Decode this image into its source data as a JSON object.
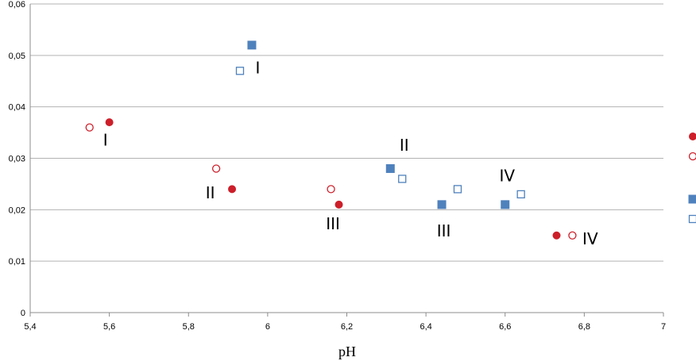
{
  "chart_data": {
    "type": "scatter",
    "title": "",
    "xlabel": "pH",
    "ylabel": "",
    "xlim": [
      5.4,
      7
    ],
    "ylim": [
      0,
      0.06
    ],
    "x_ticks": [
      "5,4",
      "5,6",
      "5,8",
      "6",
      "6,2",
      "6,4",
      "6,6",
      "6,8",
      "7"
    ],
    "y_ticks": [
      "0",
      "0,01",
      "0,02",
      "0,03",
      "0,04",
      "0,05",
      "0,06"
    ],
    "grid": "horizontal",
    "legend": "right (cropped, markers only)",
    "series": [
      {
        "marker": "circle-filled",
        "color": "#cc1f2a",
        "points": [
          {
            "x": 5.6,
            "y": 0.037
          },
          {
            "x": 5.91,
            "y": 0.024
          },
          {
            "x": 6.18,
            "y": 0.021
          },
          {
            "x": 6.73,
            "y": 0.015
          }
        ]
      },
      {
        "marker": "circle-open",
        "color": "#cc1f2a",
        "points": [
          {
            "x": 5.55,
            "y": 0.036
          },
          {
            "x": 5.87,
            "y": 0.028
          },
          {
            "x": 6.16,
            "y": 0.024
          },
          {
            "x": 6.77,
            "y": 0.015
          }
        ]
      },
      {
        "marker": "square-filled",
        "color": "#4f81bd",
        "points": [
          {
            "x": 5.96,
            "y": 0.052
          },
          {
            "x": 6.31,
            "y": 0.028
          },
          {
            "x": 6.44,
            "y": 0.021
          },
          {
            "x": 6.6,
            "y": 0.021
          }
        ]
      },
      {
        "marker": "square-open",
        "color": "#4f81bd",
        "points": [
          {
            "x": 5.93,
            "y": 0.047
          },
          {
            "x": 6.34,
            "y": 0.026
          },
          {
            "x": 6.48,
            "y": 0.024
          },
          {
            "x": 6.64,
            "y": 0.023
          }
        ]
      }
    ],
    "annotations": [
      {
        "text": "I",
        "x": 5.59,
        "y": 0.0325
      },
      {
        "text": "II",
        "x": 5.855,
        "y": 0.0222
      },
      {
        "text": "III",
        "x": 6.165,
        "y": 0.0162
      },
      {
        "text": "IV",
        "x": 6.815,
        "y": 0.0133
      },
      {
        "text": "I",
        "x": 5.975,
        "y": 0.0465
      },
      {
        "text": "II",
        "x": 6.345,
        "y": 0.0315
      },
      {
        "text": "III",
        "x": 6.445,
        "y": 0.0148
      },
      {
        "text": "IV",
        "x": 6.605,
        "y": 0.0255
      }
    ]
  }
}
